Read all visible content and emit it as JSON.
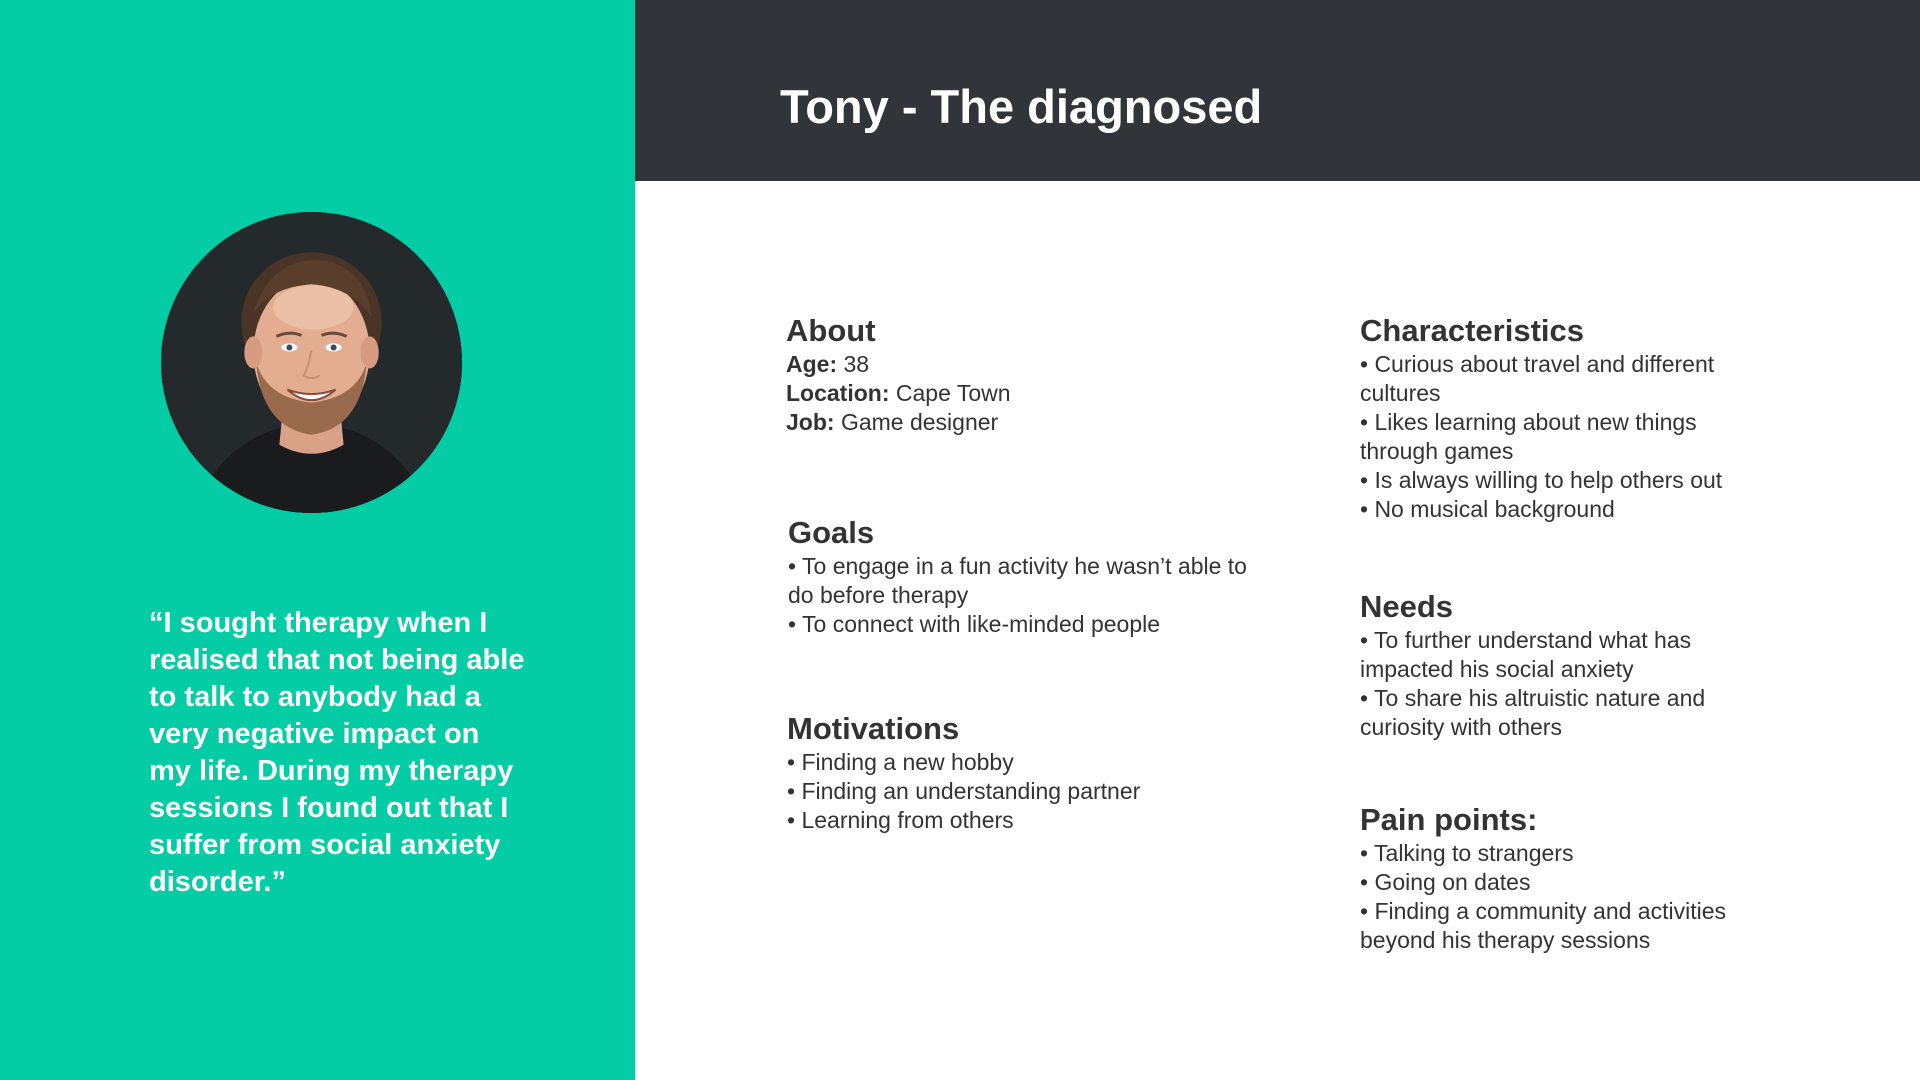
{
  "page_title": "Tony - The diagnosed",
  "quote": "“I sought therapy when I realised that not being able to talk to anybody had a very negative impact on my life. During my therapy sessions I found out that I suffer from social anxiety disorder.”",
  "colors": {
    "accent": "#04cca4",
    "header": "#313539",
    "text": "#333333"
  },
  "about": {
    "heading": "About",
    "age_label": "Age:",
    "age_value": "38",
    "location_label": "Location:",
    "location_value": "Cape Town",
    "job_label": "Job:",
    "job_value": "Game designer"
  },
  "goals": {
    "heading": "Goals",
    "items": [
      "• To engage in a fun activity he wasn’t able to do before therapy",
      "• To connect with like-minded people"
    ]
  },
  "motivations": {
    "heading": "Motivations",
    "items": [
      "• Finding a new hobby",
      "• Finding an understanding partner",
      "• Learning from others"
    ]
  },
  "characteristics": {
    "heading": "Characteristics",
    "items": [
      "• Curious about travel and different cultures",
      "• Likes learning about new things through games",
      "• Is always willing to help others out",
      "• No musical background"
    ]
  },
  "needs": {
    "heading": "Needs",
    "items": [
      "• To further understand what has impacted his social anxiety",
      "• To share his altruistic nature and curiosity with others"
    ]
  },
  "pain_points": {
    "heading": "Pain points:",
    "items": [
      "• Talking to strangers",
      "• Going on dates",
      "• Finding a community and activities beyond his therapy sessions"
    ]
  }
}
